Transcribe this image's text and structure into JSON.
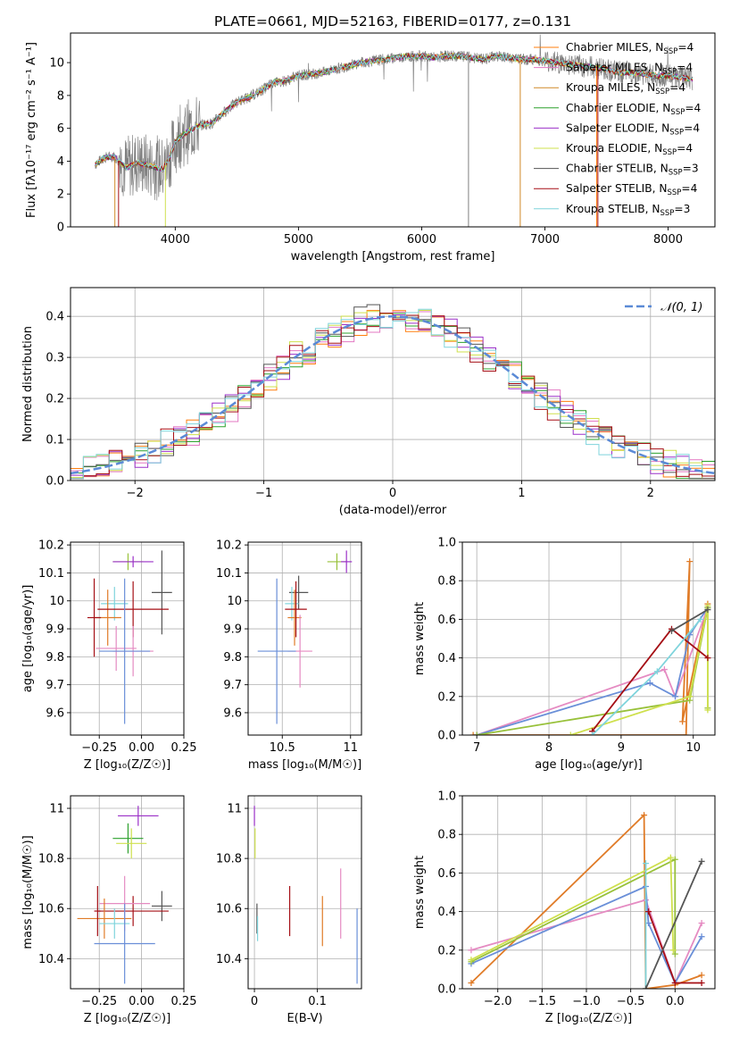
{
  "figure": {
    "title": "PLATE=0661, MJD=52163, FIBERID=0177, z=0.131"
  },
  "colors": {
    "chabrier_miles": "#ff7f0e",
    "salpeter_miles": "#e377c2",
    "kroupa_miles": "#d08a28",
    "chabrier_elodie": "#2ca02c",
    "salpeter_elodie": "#9b30c8",
    "kroupa_elodie": "#cfe04e",
    "chabrier_stelib": "#555555",
    "salpeter_stelib": "#a50f15",
    "kroupa_stelib": "#7fd4dc",
    "blue_model": "#6a8fd8",
    "orange_model": "#e07b27",
    "pink_model": "#e58bc2",
    "green_model": "#bcd93b",
    "olive_model": "#98c13a",
    "dark_model": "#555555",
    "red_model": "#a50f15",
    "cyan_model": "#7fd4dc",
    "data_grey": "#808080",
    "normal_curve": "#5b8ad6"
  },
  "chart_data": [
    {
      "id": "spectrum",
      "type": "line",
      "xlabel": "wavelength [Angstrom, rest frame]",
      "ylabel": "Flux [fλ10⁻¹⁷ erg cm⁻² s⁻¹ A⁻¹]",
      "xlim": [
        3150,
        8380
      ],
      "ylim": [
        0,
        11.8
      ],
      "xticks": [
        4000,
        5000,
        6000,
        7000,
        8000
      ],
      "yticks": [
        0,
        2,
        4,
        6,
        8,
        10
      ],
      "grid": false,
      "legend_position": "top-right",
      "legend": [
        {
          "label": "Chabrier MILES, N",
          "sub": "SSP",
          "tail": "=4",
          "color": "#ff7f0e"
        },
        {
          "label": "Salpeter MILES, N",
          "sub": "SSP",
          "tail": "=4",
          "color": "#e377c2"
        },
        {
          "label": "Kroupa MILES, N",
          "sub": "SSP",
          "tail": "=4",
          "color": "#d08a28"
        },
        {
          "label": "Chabrier ELODIE, N",
          "sub": "SSP",
          "tail": "=4",
          "color": "#2ca02c"
        },
        {
          "label": "Salpeter ELODIE, N",
          "sub": "SSP",
          "tail": "=4",
          "color": "#9b30c8"
        },
        {
          "label": "Kroupa ELODIE, N",
          "sub": "SSP",
          "tail": "=4",
          "color": "#cfe04e"
        },
        {
          "label": "Chabrier STELIB, N",
          "sub": "SSP",
          "tail": "=3",
          "color": "#555555"
        },
        {
          "label": "Salpeter STELIB, N",
          "sub": "SSP",
          "tail": "=4",
          "color": "#a50f15"
        },
        {
          "label": "Kroupa STELIB, N",
          "sub": "SSP",
          "tail": "=3",
          "color": "#7fd4dc"
        }
      ],
      "continuum": [
        [
          3350,
          3.8
        ],
        [
          3420,
          4.2
        ],
        [
          3500,
          4.3
        ],
        [
          3600,
          3.6
        ],
        [
          3700,
          3.9
        ],
        [
          3800,
          3.7
        ],
        [
          3900,
          3.5
        ],
        [
          3960,
          4.3
        ],
        [
          4000,
          5.2
        ],
        [
          4100,
          5.8
        ],
        [
          4200,
          6.2
        ],
        [
          4300,
          6.3
        ],
        [
          4400,
          7.0
        ],
        [
          4500,
          7.6
        ],
        [
          4600,
          7.9
        ],
        [
          4700,
          8.3
        ],
        [
          4800,
          8.8
        ],
        [
          4900,
          8.9
        ],
        [
          5000,
          9.2
        ],
        [
          5100,
          9.3
        ],
        [
          5200,
          9.4
        ],
        [
          5300,
          9.6
        ],
        [
          5400,
          9.8
        ],
        [
          5500,
          10.0
        ],
        [
          5600,
          10.1
        ],
        [
          5700,
          10.2
        ],
        [
          5800,
          10.3
        ],
        [
          5900,
          10.4
        ],
        [
          6000,
          10.4
        ],
        [
          6100,
          10.3
        ],
        [
          6200,
          10.4
        ],
        [
          6300,
          10.4
        ],
        [
          6400,
          10.3
        ],
        [
          6500,
          10.2
        ],
        [
          6600,
          10.4
        ],
        [
          6700,
          10.3
        ],
        [
          6800,
          10.2
        ],
        [
          6900,
          10.2
        ],
        [
          7000,
          10.1
        ],
        [
          7100,
          10.0
        ],
        [
          7200,
          9.9
        ],
        [
          7300,
          9.8
        ],
        [
          7400,
          9.7
        ],
        [
          7500,
          9.6
        ],
        [
          7600,
          9.4
        ],
        [
          7700,
          9.4
        ],
        [
          7800,
          9.3
        ],
        [
          7900,
          9.2
        ],
        [
          8000,
          9.2
        ],
        [
          8100,
          9.1
        ],
        [
          8200,
          9.0
        ]
      ],
      "noise_range_start": 3550,
      "noise_range_end": 4200,
      "dropouts": [
        {
          "x": 3510,
          "color": "#d08a28"
        },
        {
          "x": 3540,
          "color": "#a50f15"
        },
        {
          "x": 3920,
          "color": "#cfe04e"
        },
        {
          "x": 6800,
          "color": "#d08a28"
        },
        {
          "x": 7420,
          "color": "#ff7f0e"
        },
        {
          "x": 7430,
          "color": "#a50f15"
        },
        {
          "x": 6380,
          "color": "#808080"
        }
      ]
    },
    {
      "id": "residuals",
      "type": "histogram",
      "xlabel": "(data-model)/error",
      "ylabel": "Normed distribution",
      "xlim": [
        -2.5,
        2.5
      ],
      "ylim": [
        0,
        0.47
      ],
      "xticks": [
        -2,
        -1,
        0,
        1,
        2
      ],
      "yticks": [
        0.0,
        0.1,
        0.2,
        0.3,
        0.4
      ],
      "grid": true,
      "legend_position": "top-right",
      "legend_label": "𝒩(0, 1)",
      "bin_width": 0.1,
      "normal": {
        "mean": 0,
        "sigma": 1,
        "peak": 0.4
      }
    },
    {
      "id": "age_vs_Z",
      "type": "errorbar",
      "xlabel": "Z [log₁₀(Z/Z☉)]",
      "ylabel": "age  [log₁₀(age/yr)]",
      "xlim": [
        -0.42,
        0.25
      ],
      "ylim": [
        9.52,
        10.21
      ],
      "xticks": [
        -0.25,
        0.0,
        0.25
      ],
      "xticklabels": [
        "−0.25",
        "0.00",
        "0.25"
      ],
      "yticks": [
        9.6,
        9.7,
        9.8,
        9.9,
        10.0,
        10.1,
        10.2
      ],
      "grid": true,
      "points": [
        {
          "x": -0.08,
          "y": 10.14,
          "xerr": 0.09,
          "yerr": 0.03,
          "color": "#98c13a"
        },
        {
          "x": -0.05,
          "y": 10.14,
          "xerr": 0.12,
          "yerr": 0.02,
          "color": "#9b30c8"
        },
        {
          "x": 0.12,
          "y": 10.03,
          "xerr": 0.06,
          "yerr": 0.15,
          "color": "#555555"
        },
        {
          "x": -0.16,
          "y": 9.99,
          "xerr": 0.08,
          "yerr": 0.06,
          "color": "#7fd4dc"
        },
        {
          "x": -0.2,
          "y": 9.94,
          "xerr": 0.08,
          "yerr": 0.1,
          "color": "#e07b27"
        },
        {
          "x": -0.05,
          "y": 9.97,
          "xerr": 0.21,
          "yerr": 0.1,
          "color": "#a50f15"
        },
        {
          "x": -0.15,
          "y": 9.83,
          "xerr": 0.12,
          "yerr": 0.08,
          "color": "#e58bc2"
        },
        {
          "x": -0.05,
          "y": 9.82,
          "xerr": 0.12,
          "yerr": 0.09,
          "color": "#e58bc2"
        },
        {
          "x": -0.1,
          "y": 9.82,
          "xerr": 0.15,
          "yerr": 0.26,
          "color": "#6a8fd8"
        },
        {
          "x": -0.28,
          "y": 9.94,
          "xerr": 0.04,
          "yerr": 0.14,
          "color": "#a50f15"
        }
      ]
    },
    {
      "id": "age_vs_mass",
      "type": "errorbar",
      "xlabel": "mass [log₁₀(M/M☉)]",
      "ylabel": "",
      "xlim": [
        10.25,
        11.08
      ],
      "ylim": [
        9.52,
        10.21
      ],
      "xticks": [
        10.5,
        11.0
      ],
      "yticks": [
        9.6,
        9.7,
        9.8,
        9.9,
        10.0,
        10.1,
        10.2
      ],
      "grid": true,
      "points": [
        {
          "x": 10.9,
          "y": 10.14,
          "xerr": 0.07,
          "yerr": 0.03,
          "color": "#98c13a"
        },
        {
          "x": 10.97,
          "y": 10.14,
          "xerr": 0.04,
          "yerr": 0.04,
          "color": "#9b30c8"
        },
        {
          "x": 10.62,
          "y": 10.03,
          "xerr": 0.07,
          "yerr": 0.06,
          "color": "#555555"
        },
        {
          "x": 10.57,
          "y": 9.99,
          "xerr": 0.05,
          "yerr": 0.06,
          "color": "#7fd4dc"
        },
        {
          "x": 10.59,
          "y": 9.94,
          "xerr": 0.05,
          "yerr": 0.1,
          "color": "#e07b27"
        },
        {
          "x": 10.6,
          "y": 9.97,
          "xerr": 0.08,
          "yerr": 0.1,
          "color": "#a50f15"
        },
        {
          "x": 10.63,
          "y": 9.82,
          "xerr": 0.09,
          "yerr": 0.13,
          "color": "#e58bc2"
        },
        {
          "x": 10.46,
          "y": 9.82,
          "xerr": 0.14,
          "yerr": 0.26,
          "color": "#6a8fd8"
        }
      ]
    },
    {
      "id": "massweight_vs_age",
      "type": "line",
      "xlabel": "age  [log₁₀(age/yr)]",
      "ylabel": "mass weight",
      "xlim": [
        6.8,
        10.3
      ],
      "ylim": [
        0,
        1.0
      ],
      "xticks": [
        7,
        8,
        9,
        10
      ],
      "yticks": [
        0.0,
        0.2,
        0.4,
        0.6,
        0.8,
        1.0
      ],
      "grid": true,
      "series": [
        {
          "color": "#e07b27",
          "points": [
            [
              6.95,
              0.0
            ],
            [
              9.9,
              0.0
            ],
            [
              9.95,
              0.9
            ],
            [
              9.85,
              0.07
            ],
            [
              10.2,
              0.68
            ]
          ]
        },
        {
          "color": "#e58bc2",
          "points": [
            [
              7.0,
              0.0
            ],
            [
              9.6,
              0.34
            ],
            [
              9.75,
              0.2
            ],
            [
              10.2,
              0.66
            ]
          ]
        },
        {
          "color": "#6a8fd8",
          "points": [
            [
              7.0,
              0.0
            ],
            [
              9.4,
              0.27
            ],
            [
              9.75,
              0.2
            ],
            [
              9.95,
              0.52
            ],
            [
              10.2,
              0.66
            ]
          ]
        },
        {
          "color": "#98c13a",
          "points": [
            [
              7.0,
              0.0
            ],
            [
              9.95,
              0.18
            ],
            [
              10.2,
              0.66
            ],
            [
              10.2,
              0.14
            ]
          ]
        },
        {
          "color": "#cfe04e",
          "points": [
            [
              8.3,
              0.0
            ],
            [
              9.95,
              0.2
            ],
            [
              10.2,
              0.67
            ],
            [
              10.2,
              0.13
            ]
          ]
        },
        {
          "color": "#a50f15",
          "points": [
            [
              8.6,
              0.02
            ],
            [
              9.7,
              0.55
            ],
            [
              10.2,
              0.4
            ]
          ]
        },
        {
          "color": "#7fd4dc",
          "points": [
            [
              8.6,
              0.0
            ],
            [
              9.5,
              0.33
            ],
            [
              10.1,
              0.6
            ]
          ]
        },
        {
          "color": "#555555",
          "points": [
            [
              9.7,
              0.54
            ],
            [
              10.2,
              0.65
            ]
          ]
        }
      ]
    },
    {
      "id": "mass_vs_Z",
      "type": "errorbar",
      "xlabel": "Z [log₁₀(Z/Z☉)]",
      "ylabel": "mass [log₁₀(M/M☉)]",
      "xlim": [
        -0.42,
        0.25
      ],
      "ylim": [
        10.28,
        11.05
      ],
      "xticks": [
        -0.25,
        0.0,
        0.25
      ],
      "xticklabels": [
        "−0.25",
        "0.00",
        "0.25"
      ],
      "yticks": [
        10.4,
        10.6,
        10.8,
        11.0
      ],
      "grid": true,
      "points": [
        {
          "x": -0.02,
          "y": 10.97,
          "xerr": 0.12,
          "yerr": 0.04,
          "color": "#9b30c8"
        },
        {
          "x": -0.08,
          "y": 10.88,
          "xerr": 0.09,
          "yerr": 0.06,
          "color": "#2ca02c"
        },
        {
          "x": -0.06,
          "y": 10.86,
          "xerr": 0.09,
          "yerr": 0.06,
          "color": "#cfe04e"
        },
        {
          "x": 0.12,
          "y": 10.61,
          "xerr": 0.06,
          "yerr": 0.06,
          "color": "#555555"
        },
        {
          "x": -0.05,
          "y": 10.59,
          "xerr": 0.21,
          "yerr": 0.06,
          "color": "#a50f15"
        },
        {
          "x": -0.1,
          "y": 10.62,
          "xerr": 0.15,
          "yerr": 0.11,
          "color": "#e58bc2"
        },
        {
          "x": -0.22,
          "y": 10.56,
          "xerr": 0.16,
          "yerr": 0.08,
          "color": "#e07b27"
        },
        {
          "x": -0.16,
          "y": 10.54,
          "xerr": 0.09,
          "yerr": 0.06,
          "color": "#7fd4dc"
        },
        {
          "x": -0.1,
          "y": 10.46,
          "xerr": 0.18,
          "yerr": 0.16,
          "color": "#6a8fd8"
        },
        {
          "x": -0.26,
          "y": 10.59,
          "xerr": 0.02,
          "yerr": 0.1,
          "color": "#a50f15"
        }
      ]
    },
    {
      "id": "mass_vs_ebv",
      "type": "errorbar",
      "xlabel": "E(B-V)",
      "ylabel": "",
      "xlim": [
        -0.01,
        0.17
      ],
      "ylim": [
        10.28,
        11.05
      ],
      "xticks": [
        0.0,
        0.1
      ],
      "yticks": [
        10.4,
        10.6,
        10.8,
        11.0
      ],
      "grid": true,
      "points": [
        {
          "x": 0.0,
          "y": 10.97,
          "xerr": 0,
          "yerr": 0.04,
          "color": "#9b30c8"
        },
        {
          "x": 0.001,
          "y": 10.86,
          "xerr": 0,
          "yerr": 0.06,
          "color": "#cfe04e"
        },
        {
          "x": 0.004,
          "y": 10.56,
          "xerr": 0,
          "yerr": 0.06,
          "color": "#555555"
        },
        {
          "x": 0.005,
          "y": 10.52,
          "xerr": 0,
          "yerr": 0.05,
          "color": "#7fd4dc"
        },
        {
          "x": 0.056,
          "y": 10.59,
          "xerr": 0,
          "yerr": 0.1,
          "color": "#a50f15"
        },
        {
          "x": 0.108,
          "y": 10.55,
          "xerr": 0,
          "yerr": 0.1,
          "color": "#e07b27"
        },
        {
          "x": 0.137,
          "y": 10.62,
          "xerr": 0,
          "yerr": 0.14,
          "color": "#e58bc2"
        },
        {
          "x": 0.163,
          "y": 10.45,
          "xerr": 0,
          "yerr": 0.15,
          "color": "#6a8fd8"
        }
      ]
    },
    {
      "id": "massweight_vs_Z",
      "type": "line",
      "xlabel": "Z [log₁₀(Z/Z☉)]",
      "ylabel": "mass weight",
      "xlim": [
        -2.4,
        0.45
      ],
      "ylim": [
        0,
        1.0
      ],
      "xticks": [
        -2.0,
        -1.5,
        -1.0,
        -0.5,
        0.0
      ],
      "xticklabels": [
        "−2.0",
        "−1.5",
        "−1.0",
        "−0.5",
        "0.0"
      ],
      "yticks": [
        0.0,
        0.2,
        0.4,
        0.6,
        0.8,
        1.0
      ],
      "grid": true,
      "series": [
        {
          "color": "#e07b27",
          "points": [
            [
              -2.3,
              0.03
            ],
            [
              -0.35,
              0.9
            ],
            [
              -0.33,
              0.0
            ],
            [
              0.0,
              0.02
            ],
            [
              0.3,
              0.07
            ]
          ]
        },
        {
          "color": "#e58bc2",
          "points": [
            [
              -2.3,
              0.2
            ],
            [
              -0.33,
              0.46
            ],
            [
              0.0,
              0.03
            ],
            [
              0.3,
              0.34
            ]
          ]
        },
        {
          "color": "#6a8fd8",
          "points": [
            [
              -2.3,
              0.13
            ],
            [
              -0.33,
              0.53
            ],
            [
              -0.3,
              0.34
            ],
            [
              0.0,
              0.03
            ],
            [
              0.3,
              0.27
            ]
          ]
        },
        {
          "color": "#98c13a",
          "points": [
            [
              -2.3,
              0.14
            ],
            [
              0.0,
              0.67
            ],
            [
              0.0,
              0.18
            ]
          ]
        },
        {
          "color": "#cfe04e",
          "points": [
            [
              -2.3,
              0.15
            ],
            [
              -0.05,
              0.68
            ],
            [
              -0.02,
              0.2
            ]
          ]
        },
        {
          "color": "#7fd4dc",
          "points": [
            [
              -0.33,
              0.65
            ],
            [
              -0.33,
              0.0
            ]
          ]
        },
        {
          "color": "#a50f15",
          "points": [
            [
              -0.3,
              0.4
            ],
            [
              0.0,
              0.03
            ],
            [
              0.3,
              0.03
            ]
          ]
        },
        {
          "color": "#555555",
          "points": [
            [
              -0.33,
              0.0
            ],
            [
              0.3,
              0.66
            ]
          ]
        }
      ]
    }
  ]
}
